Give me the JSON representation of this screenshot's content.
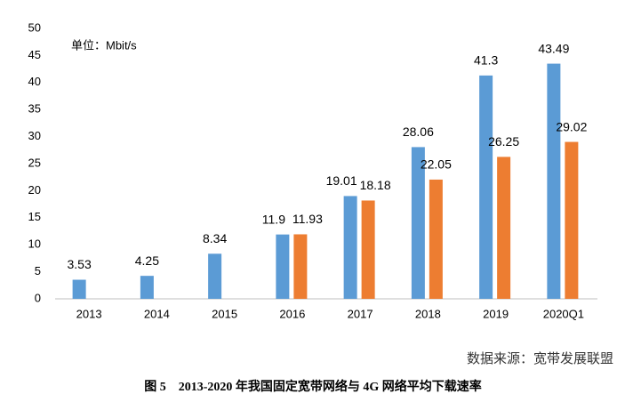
{
  "chart_data": {
    "type": "bar",
    "title": "图 5　2013-2020 年我国固定宽带网络与 4G 网络平均下载速率",
    "unit_note": "单位：Mbit/s",
    "source": "数据来源：宽带发展联盟",
    "categories": [
      "2013",
      "2014",
      "2015",
      "2016",
      "2017",
      "2018",
      "2019",
      "2020Q1"
    ],
    "series": [
      {
        "color": "#5b9bd5",
        "values": [
          3.53,
          4.25,
          8.34,
          11.9,
          19.01,
          28.06,
          41.3,
          43.49
        ]
      },
      {
        "color": "#ed7d31",
        "values": [
          null,
          null,
          null,
          11.93,
          18.18,
          22.05,
          26.25,
          29.02
        ]
      }
    ],
    "ylim": [
      0,
      50
    ],
    "yticks": [
      0,
      5,
      10,
      15,
      20,
      25,
      30,
      35,
      40,
      45,
      50
    ],
    "grid": false
  }
}
